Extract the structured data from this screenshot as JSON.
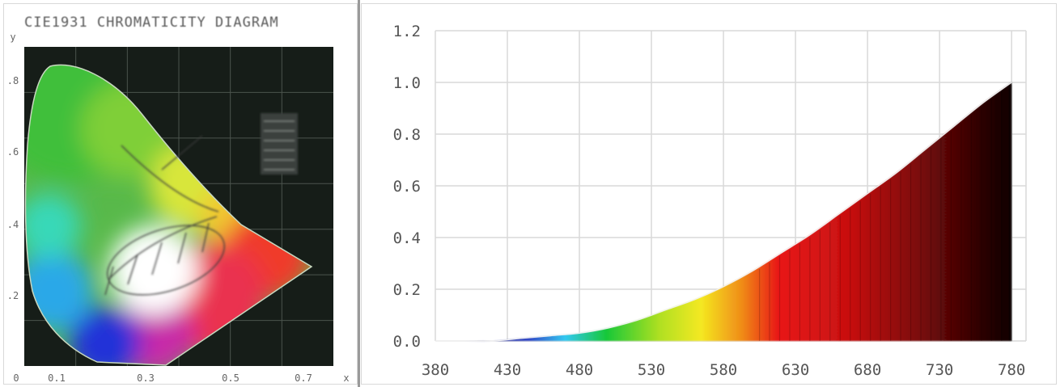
{
  "chart_data": [
    {
      "type": "other",
      "title": "CIE1931 CHROMATICITY DIAGRAM",
      "subtitle": "",
      "xlabel": "x",
      "ylabel": "y",
      "xlim": [
        0,
        0.8
      ],
      "ylim": [
        0,
        0.9
      ],
      "x_ticks": [
        "0",
        "0.1",
        "0.3",
        "0.5",
        "0.7"
      ],
      "y_ticks": [
        ".8",
        ".6",
        ".4",
        ".2"
      ],
      "background": "#161d18",
      "grid": true
    },
    {
      "type": "area",
      "title": "",
      "xlabel": "",
      "ylabel": "",
      "x_ticks": [
        "380",
        "430",
        "480",
        "530",
        "580",
        "630",
        "680",
        "730",
        "780"
      ],
      "y_ticks": [
        "0.0",
        "0.2",
        "0.4",
        "0.6",
        "0.8",
        "1.0",
        "1.2"
      ],
      "xlim": [
        380,
        790
      ],
      "ylim": [
        0,
        1.2
      ],
      "grid": true,
      "series": [
        {
          "x": [
            380,
            400,
            420,
            440,
            460,
            480,
            500,
            520,
            540,
            560,
            580,
            600,
            620,
            640,
            660,
            680,
            700,
            720,
            740,
            760,
            780
          ],
          "values": [
            0.0,
            0.0,
            0.0,
            0.01,
            0.02,
            0.03,
            0.05,
            0.08,
            0.12,
            0.16,
            0.21,
            0.27,
            0.34,
            0.41,
            0.49,
            0.57,
            0.65,
            0.74,
            0.83,
            0.92,
            1.0
          ]
        }
      ]
    }
  ]
}
